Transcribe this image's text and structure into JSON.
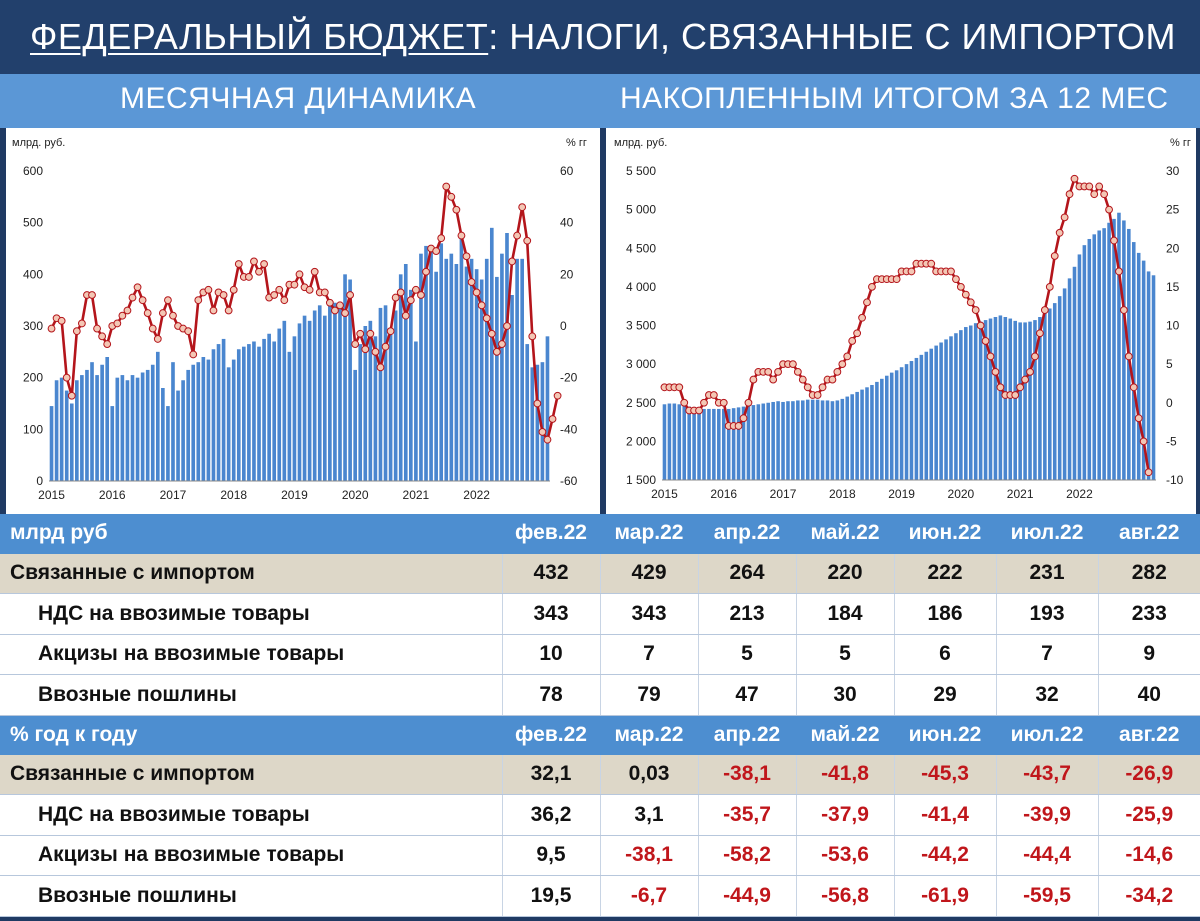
{
  "title": {
    "underlined": "ФЕДЕРАЛЬНЫЙ БЮДЖЕТ",
    "rest": ": НАЛОГИ, СВЯЗАННЫЕ С ИМПОРТОМ"
  },
  "subtitles": {
    "left": "МЕСЯЧНАЯ ДИНАМИКА",
    "right": "НАКОПЛЕННЫМ ИТОГОМ ЗА 12 МЕС"
  },
  "colors": {
    "bar": "#4a86cf",
    "line": "#b4151b",
    "marker_fill": "#f3c7b5",
    "header_blue": "#4d8ed0",
    "main_row": "#ddd7c8",
    "negative": "#c0161b"
  },
  "chart_data": [
    {
      "type": "bar",
      "title": "МЕСЯЧНАЯ ДИНАМИКА",
      "ylabel": "млрд. руб.",
      "y2label": "% гг",
      "ylim": [
        0,
        600
      ],
      "y2lim": [
        -60,
        60
      ],
      "yticks": [
        "0",
        "100",
        "200",
        "300",
        "400",
        "500",
        "600"
      ],
      "y2ticks": [
        "-60",
        "-40",
        "-20",
        "0",
        "20",
        "40",
        "60"
      ],
      "x_tick_labels": [
        "2015",
        "2016",
        "2017",
        "2018",
        "2019",
        "2020",
        "2021",
        "2022"
      ],
      "x_start": "2015-01",
      "series": [
        {
          "name": "",
          "kind": "bar",
          "axis": "left",
          "values": [
            145,
            195,
            200,
            175,
            150,
            195,
            205,
            215,
            230,
            205,
            225,
            240,
            145,
            200,
            205,
            195,
            205,
            200,
            210,
            215,
            225,
            250,
            180,
            145,
            230,
            175,
            195,
            215,
            225,
            230,
            240,
            235,
            255,
            265,
            275,
            220,
            235,
            255,
            260,
            265,
            270,
            260,
            275,
            285,
            270,
            295,
            310,
            250,
            280,
            305,
            320,
            310,
            330,
            340,
            320,
            350,
            345,
            345,
            400,
            390,
            215,
            265,
            300,
            310,
            280,
            335,
            340,
            290,
            330,
            400,
            420,
            370,
            270,
            440,
            455,
            450,
            405,
            460,
            430,
            440,
            420,
            480,
            415,
            430,
            410,
            390,
            430,
            490,
            395,
            440,
            480,
            360,
            430,
            430,
            265,
            220,
            225,
            230,
            280
          ]
        },
        {
          "name": "",
          "kind": "line",
          "axis": "right",
          "values": [
            -1,
            3,
            2,
            -20,
            -27,
            -2,
            1,
            12,
            12,
            -1,
            -4,
            -7,
            0,
            1,
            4,
            6,
            11,
            15,
            10,
            5,
            -1,
            -5,
            5,
            10,
            4,
            0,
            -1,
            -2,
            -11,
            10,
            13,
            14,
            6,
            13,
            12,
            6,
            14,
            24,
            19,
            19,
            25,
            21,
            24,
            11,
            12,
            14,
            10,
            16,
            16,
            20,
            15,
            14,
            21,
            13,
            13,
            9,
            6,
            8,
            5,
            12,
            -7,
            -3,
            -9,
            -3,
            -10,
            -16,
            -8,
            -2,
            11,
            13,
            4,
            10,
            14,
            12,
            21,
            30,
            29,
            34,
            54,
            50,
            45,
            35,
            27,
            17,
            13,
            8,
            3,
            -3,
            -10,
            -7,
            0,
            25,
            35,
            46,
            33,
            -4,
            -30,
            -41,
            -44,
            -36,
            -27
          ]
        }
      ]
    },
    {
      "type": "bar",
      "title": "НАКОПЛЕННЫМ ИТОГОМ ЗА 12 МЕС",
      "ylabel": "млрд. руб.",
      "y2label": "% гг",
      "ylim": [
        1500,
        5500
      ],
      "y2lim": [
        -10,
        30
      ],
      "yticks": [
        "1 500",
        "2 000",
        "2 500",
        "3 000",
        "3 500",
        "4 000",
        "4 500",
        "5 000",
        "5 500"
      ],
      "y2ticks": [
        "-10",
        "-5",
        "0",
        "5",
        "10",
        "15",
        "20",
        "25",
        "30"
      ],
      "x_tick_labels": [
        "2015",
        "2016",
        "2017",
        "2018",
        "2019",
        "2020",
        "2021",
        "2022"
      ],
      "x_start": "2015-01",
      "series": [
        {
          "name": "",
          "kind": "bar",
          "axis": "left",
          "values": [
            2480,
            2490,
            2490,
            2480,
            2460,
            2450,
            2440,
            2430,
            2420,
            2420,
            2420,
            2420,
            2420,
            2420,
            2430,
            2440,
            2450,
            2460,
            2470,
            2480,
            2490,
            2500,
            2510,
            2520,
            2510,
            2520,
            2520,
            2530,
            2530,
            2540,
            2540,
            2540,
            2530,
            2530,
            2520,
            2530,
            2550,
            2580,
            2610,
            2640,
            2670,
            2700,
            2730,
            2770,
            2810,
            2850,
            2890,
            2920,
            2960,
            3000,
            3040,
            3080,
            3120,
            3160,
            3200,
            3240,
            3280,
            3320,
            3360,
            3400,
            3440,
            3480,
            3500,
            3530,
            3550,
            3570,
            3590,
            3610,
            3630,
            3610,
            3590,
            3560,
            3540,
            3540,
            3550,
            3570,
            3610,
            3660,
            3720,
            3790,
            3880,
            3980,
            4110,
            4260,
            4420,
            4540,
            4620,
            4680,
            4730,
            4760,
            4830,
            4880,
            4960,
            4860,
            4750,
            4580,
            4440,
            4340,
            4200,
            4150
          ]
        },
        {
          "name": "",
          "kind": "line",
          "axis": "right",
          "values": [
            2,
            2,
            2,
            2,
            0,
            -1,
            -1,
            -1,
            0,
            1,
            1,
            0,
            0,
            -3,
            -3,
            -3,
            -2,
            0,
            3,
            4,
            4,
            4,
            3,
            4,
            5,
            5,
            5,
            4,
            3,
            2,
            1,
            1,
            2,
            3,
            3,
            4,
            5,
            6,
            8,
            9,
            11,
            13,
            15,
            16,
            16,
            16,
            16,
            16,
            17,
            17,
            17,
            18,
            18,
            18,
            18,
            17,
            17,
            17,
            17,
            16,
            15,
            14,
            13,
            12,
            10,
            8,
            6,
            4,
            2,
            1,
            1,
            1,
            2,
            3,
            4,
            6,
            9,
            12,
            15,
            19,
            22,
            24,
            27,
            29,
            28,
            28,
            28,
            27,
            28,
            27,
            25,
            21,
            17,
            12,
            6,
            2,
            -2,
            -5,
            -9
          ]
        }
      ]
    }
  ],
  "table_amounts": {
    "header": "млрд руб",
    "months": [
      "фев.22",
      "мар.22",
      "апр.22",
      "май.22",
      "июн.22",
      "июл.22",
      "авг.22"
    ],
    "rows": [
      {
        "label": "Связанные с импортом",
        "values": [
          "432",
          "429",
          "264",
          "220",
          "222",
          "231",
          "282"
        ]
      },
      {
        "label": "НДС на ввозимые товары",
        "values": [
          "343",
          "343",
          "213",
          "184",
          "186",
          "193",
          "233"
        ]
      },
      {
        "label": "Акцизы на ввозимые товары",
        "values": [
          "10",
          "7",
          "5",
          "5",
          "6",
          "7",
          "9"
        ]
      },
      {
        "label": "Ввозные пошлины",
        "values": [
          "78",
          "79",
          "47",
          "30",
          "29",
          "32",
          "40"
        ]
      }
    ]
  },
  "table_yoy": {
    "header": "% год к году",
    "months": [
      "фев.22",
      "мар.22",
      "апр.22",
      "май.22",
      "июн.22",
      "июл.22",
      "авг.22"
    ],
    "rows": [
      {
        "label": "Связанные с импортом",
        "values": [
          "32,1",
          "0,03",
          "-38,1",
          "-41,8",
          "-45,3",
          "-43,7",
          "-26,9"
        ]
      },
      {
        "label": "НДС на ввозимые товары",
        "values": [
          "36,2",
          "3,1",
          "-35,7",
          "-37,9",
          "-41,4",
          "-39,9",
          "-25,9"
        ]
      },
      {
        "label": "Акцизы на ввозимые товары",
        "values": [
          "9,5",
          "-38,1",
          "-58,2",
          "-53,6",
          "-44,2",
          "-44,4",
          "-14,6"
        ]
      },
      {
        "label": "Ввозные пошлины",
        "values": [
          "19,5",
          "-6,7",
          "-44,9",
          "-56,8",
          "-61,9",
          "-59,5",
          "-34,2"
        ]
      }
    ]
  }
}
